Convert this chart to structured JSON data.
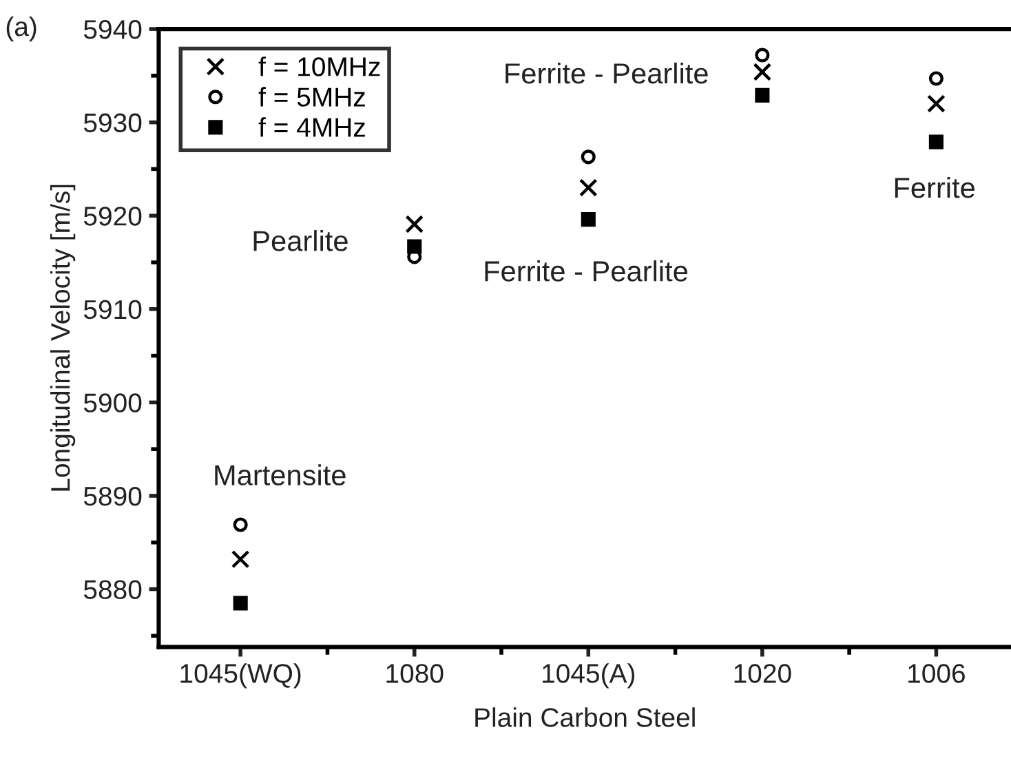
{
  "chart_data": {
    "type": "scatter",
    "xlabel": "Plain Carbon Steel",
    "ylabel": "Longitudinal Velocity [m/s]",
    "categories": [
      "1045(WQ)",
      "1080",
      "1045(A)",
      "1020",
      "1006"
    ],
    "series": [
      {
        "name": "f = 10MHz",
        "color": "#000000",
        "marker": "cross",
        "values": [
          5883.2,
          5919.1,
          5923.0,
          5935.4,
          5932.0
        ]
      },
      {
        "name": "f = 5MHz",
        "color": "#000000",
        "marker": "circle",
        "values": [
          5886.9,
          5915.6,
          5926.3,
          5937.2,
          5934.7
        ]
      },
      {
        "name": "f = 4MHz",
        "color": "#000000",
        "marker": "square",
        "values": [
          5878.5,
          5916.7,
          5919.6,
          5932.9,
          5927.9
        ]
      }
    ],
    "ylim": [
      5873.8,
      5940
    ],
    "yticks": [
      5880,
      5890,
      5900,
      5910,
      5920,
      5930,
      5940
    ],
    "grid": false,
    "legend": "top left",
    "annotations": [
      "(a)",
      "Martensite",
      "Pearlite",
      "Ferrite - Pearlite",
      "Ferrite - Pearlite",
      "Ferrite"
    ]
  }
}
